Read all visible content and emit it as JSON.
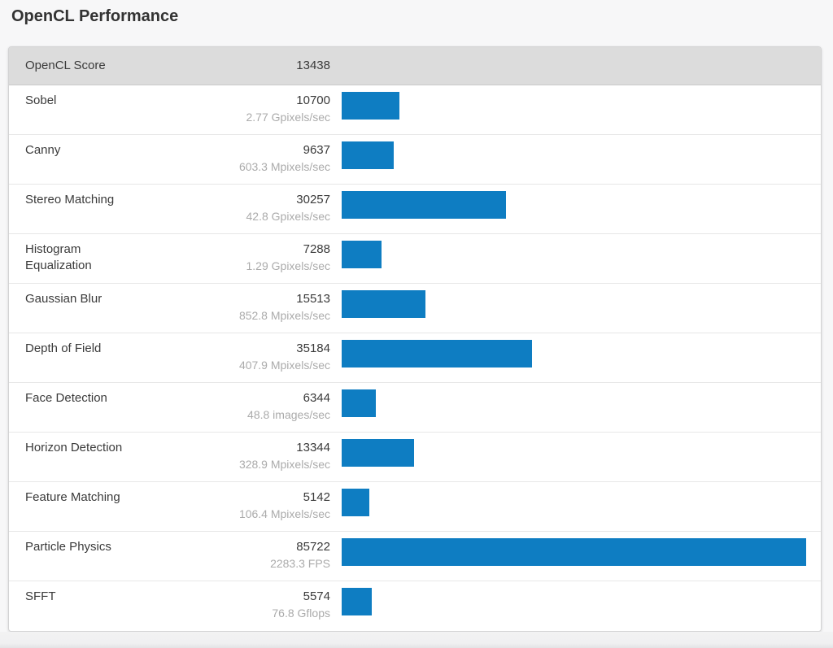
{
  "page": {
    "title": "OpenCL Performance"
  },
  "summary": {
    "label": "OpenCL Score",
    "score": "13438"
  },
  "rows": [
    {
      "name": "Sobel",
      "score": "10700",
      "throughput": "2.77 Gpixels/sec",
      "value": 10700
    },
    {
      "name": "Canny",
      "score": "9637",
      "throughput": "603.3 Mpixels/sec",
      "value": 9637
    },
    {
      "name": "Stereo Matching",
      "score": "30257",
      "throughput": "42.8 Gpixels/sec",
      "value": 30257
    },
    {
      "name": "Histogram Equalization",
      "score": "7288",
      "throughput": "1.29 Gpixels/sec",
      "value": 7288
    },
    {
      "name": "Gaussian Blur",
      "score": "15513",
      "throughput": "852.8 Mpixels/sec",
      "value": 15513
    },
    {
      "name": "Depth of Field",
      "score": "35184",
      "throughput": "407.9 Mpixels/sec",
      "value": 35184
    },
    {
      "name": "Face Detection",
      "score": "6344",
      "throughput": "48.8 images/sec",
      "value": 6344
    },
    {
      "name": "Horizon Detection",
      "score": "13344",
      "throughput": "328.9 Mpixels/sec",
      "value": 13344
    },
    {
      "name": "Feature Matching",
      "score": "5142",
      "throughput": "106.4 Mpixels/sec",
      "value": 5142
    },
    {
      "name": "Particle Physics",
      "score": "85722",
      "throughput": "2283.3 FPS",
      "value": 85722
    },
    {
      "name": "SFFT",
      "score": "5574",
      "throughput": "76.8 Gflops",
      "value": 5574
    }
  ],
  "colors": {
    "bar": "#0e7dc2",
    "header_bg": "#dcdcdc",
    "score_text": "#3a3a3a",
    "unit_text": "#ababab"
  },
  "chart_data": {
    "type": "bar",
    "orientation": "horizontal",
    "title": "OpenCL Performance",
    "summary_label": "OpenCL Score",
    "summary_value": 13438,
    "categories": [
      "Sobel",
      "Canny",
      "Stereo Matching",
      "Histogram Equalization",
      "Gaussian Blur",
      "Depth of Field",
      "Face Detection",
      "Horizon Detection",
      "Feature Matching",
      "Particle Physics",
      "SFFT"
    ],
    "series": [
      {
        "name": "OpenCL Score",
        "values": [
          10700,
          9637,
          30257,
          7288,
          15513,
          35184,
          6344,
          13344,
          5142,
          85722,
          5574
        ]
      }
    ],
    "value_labels": [
      "2.77 Gpixels/sec",
      "603.3 Mpixels/sec",
      "42.8 Gpixels/sec",
      "1.29 Gpixels/sec",
      "852.8 Mpixels/sec",
      "407.9 Mpixels/sec",
      "48.8 images/sec",
      "328.9 Mpixels/sec",
      "106.4 Mpixels/sec",
      "2283.3 FPS",
      "76.8 Gflops"
    ],
    "xlim": [
      0,
      85722
    ],
    "grid": false,
    "legend": false,
    "bar_color": "#0e7dc2"
  }
}
